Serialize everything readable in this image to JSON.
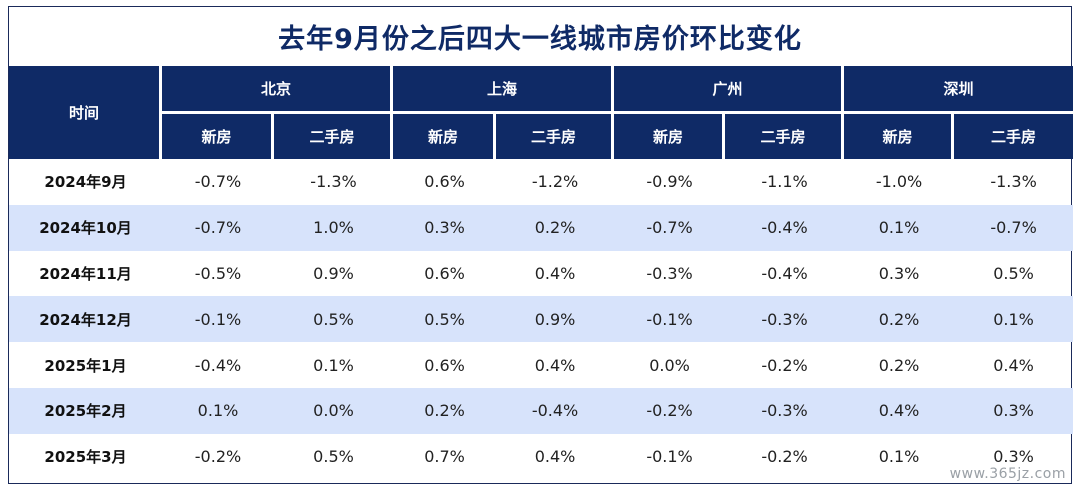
{
  "title": "去年9月份之后四大一线城市房价环比变化",
  "header": {
    "time_label": "时间",
    "cities": [
      "北京",
      "上海",
      "广州",
      "深圳"
    ],
    "sub_labels": [
      "新房",
      "二手房"
    ]
  },
  "rows": [
    {
      "time": "2024年9月",
      "values": [
        "-0.7%",
        "-1.3%",
        "0.6%",
        "-1.2%",
        "-0.9%",
        "-1.1%",
        "-1.0%",
        "-1.3%"
      ]
    },
    {
      "time": "2024年10月",
      "values": [
        "-0.7%",
        "1.0%",
        "0.3%",
        "0.2%",
        "-0.7%",
        "-0.4%",
        "0.1%",
        "-0.7%"
      ]
    },
    {
      "time": "2024年11月",
      "values": [
        "-0.5%",
        "0.9%",
        "0.6%",
        "0.4%",
        "-0.3%",
        "-0.4%",
        "0.3%",
        "0.5%"
      ]
    },
    {
      "time": "2024年12月",
      "values": [
        "-0.1%",
        "0.5%",
        "0.5%",
        "0.9%",
        "-0.1%",
        "-0.3%",
        "0.2%",
        "0.1%"
      ]
    },
    {
      "time": "2025年1月",
      "values": [
        "-0.4%",
        "0.1%",
        "0.6%",
        "0.4%",
        "0.0%",
        "-0.2%",
        "0.2%",
        "0.4%"
      ]
    },
    {
      "time": "2025年2月",
      "values": [
        "0.1%",
        "0.0%",
        "0.2%",
        "-0.4%",
        "-0.2%",
        "-0.3%",
        "0.4%",
        "0.3%"
      ]
    },
    {
      "time": "2025年3月",
      "values": [
        "-0.2%",
        "0.5%",
        "0.7%",
        "0.4%",
        "-0.1%",
        "-0.2%",
        "0.1%",
        "0.3%"
      ]
    }
  ],
  "watermark": "www.365jz.com",
  "colors": {
    "header_bg": "#0f2a66",
    "title": "#0f2a66",
    "alt_row_bg": "#d7e3fb"
  }
}
